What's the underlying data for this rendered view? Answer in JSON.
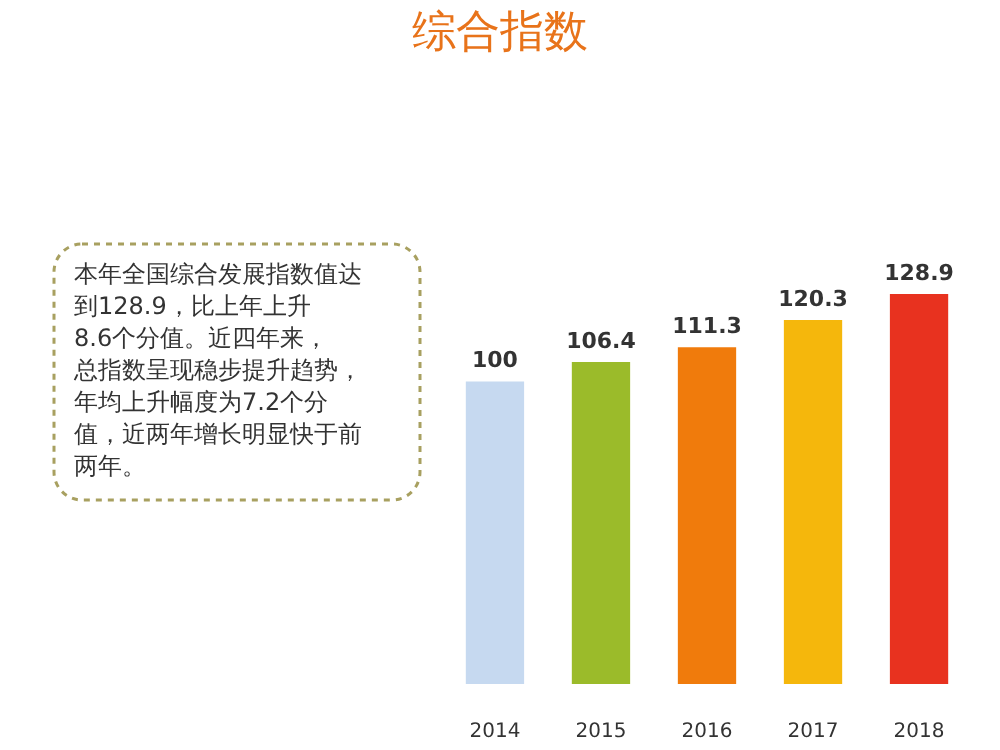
{
  "chart_data": {
    "type": "bar",
    "title": "综合指数",
    "categories": [
      "2014",
      "2015",
      "2016",
      "2017",
      "2018"
    ],
    "values": [
      100,
      106.4,
      111.3,
      120.3,
      128.9
    ],
    "colors": [
      "#c6d9f0",
      "#9bbb2a",
      "#f07b0c",
      "#f5b70c",
      "#e8321f"
    ],
    "data_labels": true,
    "grid": false,
    "tick_labels": "x",
    "annotations": [
      "本年全国综合发展指数值达到128.9，比上年上升8.6个分值。近四年来，总指数呈现稳步提升趋势，年均上升幅度为7.2个分值，近两年增长明显快于前两年。"
    ]
  }
}
